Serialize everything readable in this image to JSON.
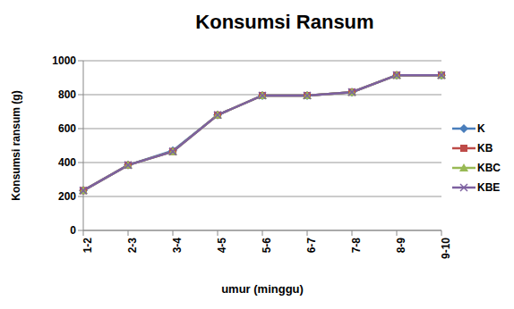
{
  "chart_data": {
    "type": "line",
    "title": "Konsumsi Ransum",
    "x_label": "umur (minggu)",
    "y_label": "Konsumsi ransum (g)",
    "categories": [
      "1-2",
      "2-3",
      "3-4",
      "4-5",
      "5-6",
      "6-7",
      "7-8",
      "8-9",
      "9-10"
    ],
    "series": [
      {
        "name": "K",
        "color": "#4a7ebb",
        "marker": "diamond",
        "values": [
          235,
          385,
          470,
          680,
          795,
          795,
          815,
          915,
          915
        ]
      },
      {
        "name": "KB",
        "color": "#be4b48",
        "marker": "square",
        "values": [
          235,
          385,
          465,
          680,
          795,
          795,
          815,
          915,
          915
        ]
      },
      {
        "name": "KBC",
        "color": "#98b954",
        "marker": "triangle",
        "values": [
          235,
          385,
          465,
          680,
          795,
          795,
          815,
          915,
          915
        ]
      },
      {
        "name": "KBE",
        "color": "#7d60a0",
        "marker": "x",
        "values": [
          235,
          385,
          465,
          680,
          795,
          795,
          815,
          915,
          915
        ]
      }
    ],
    "ylim": [
      0,
      1000
    ],
    "yticks": [
      0,
      200,
      400,
      600,
      800,
      1000
    ],
    "grid": true,
    "legend": "right"
  }
}
